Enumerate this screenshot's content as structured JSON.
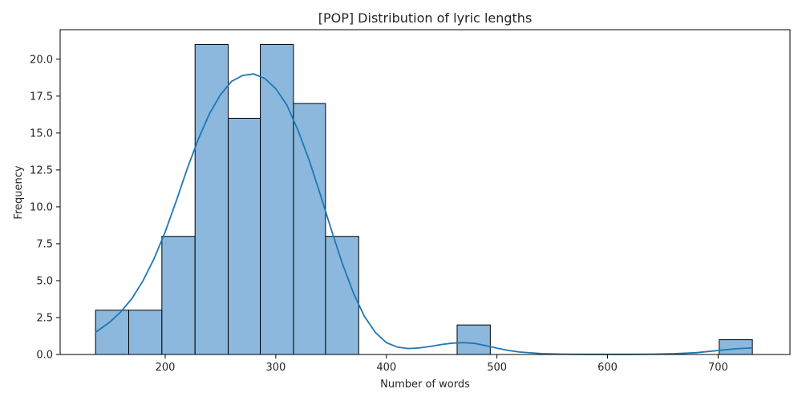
{
  "chart_data": {
    "type": "bar",
    "subtype": "histogram",
    "title": "[POP] Distribution of lyric lengths",
    "xlabel": "Number of words",
    "ylabel": "Frequency",
    "xlim": [
      105,
      765
    ],
    "ylim": [
      0,
      22
    ],
    "xticks": [
      200,
      300,
      400,
      500,
      600,
      700
    ],
    "yticks": [
      0.0,
      2.5,
      5.0,
      7.5,
      10.0,
      12.5,
      15.0,
      17.5,
      20.0
    ],
    "grid": false,
    "legend": false,
    "bars": [
      {
        "x0": 137,
        "x1": 167,
        "count": 3
      },
      {
        "x0": 167,
        "x1": 197,
        "count": 3
      },
      {
        "x0": 197,
        "x1": 227,
        "count": 8
      },
      {
        "x0": 227,
        "x1": 257,
        "count": 21
      },
      {
        "x0": 257,
        "x1": 286,
        "count": 16
      },
      {
        "x0": 286,
        "x1": 316,
        "count": 21
      },
      {
        "x0": 316,
        "x1": 345,
        "count": 17
      },
      {
        "x0": 345,
        "x1": 375,
        "count": 8
      },
      {
        "x0": 464,
        "x1": 494,
        "count": 2
      },
      {
        "x0": 701,
        "x1": 731,
        "count": 1
      }
    ],
    "kde": {
      "x": [
        137,
        150,
        160,
        170,
        180,
        190,
        200,
        210,
        220,
        230,
        240,
        250,
        260,
        270,
        280,
        290,
        300,
        310,
        320,
        330,
        340,
        350,
        360,
        370,
        380,
        390,
        400,
        410,
        420,
        430,
        440,
        450,
        460,
        470,
        480,
        490,
        500,
        510,
        520,
        540,
        560,
        580,
        600,
        620,
        640,
        660,
        680,
        700,
        715,
        731
      ],
      "y": [
        1.5,
        2.2,
        2.9,
        3.8,
        5.0,
        6.5,
        8.3,
        10.4,
        12.6,
        14.6,
        16.3,
        17.6,
        18.5,
        18.9,
        19.0,
        18.7,
        18.0,
        16.9,
        15.2,
        13.2,
        10.9,
        8.5,
        6.2,
        4.2,
        2.6,
        1.5,
        0.8,
        0.5,
        0.4,
        0.45,
        0.55,
        0.68,
        0.77,
        0.8,
        0.75,
        0.6,
        0.43,
        0.28,
        0.17,
        0.06,
        0.02,
        0.01,
        0.01,
        0.01,
        0.02,
        0.05,
        0.12,
        0.27,
        0.38,
        0.45
      ]
    },
    "colors": {
      "bar_fill": "#8bb8dc",
      "bar_edge": "#000000",
      "kde_line": "#1f77b4",
      "axis": "#000000"
    }
  }
}
